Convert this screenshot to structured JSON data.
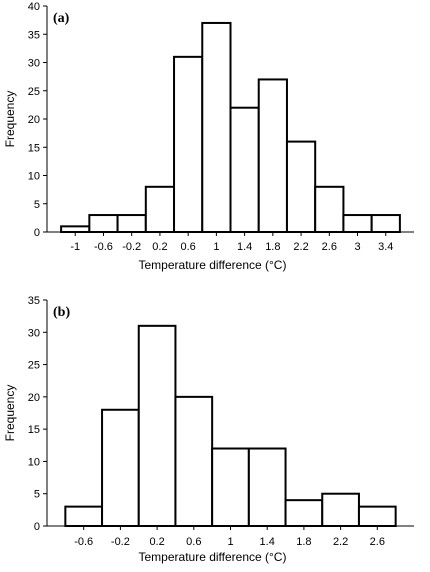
{
  "chart_data": [
    {
      "type": "bar",
      "panel_label": "(a)",
      "bin_edges": [
        -1.2,
        -0.8,
        -0.4,
        0.0,
        0.4,
        0.8,
        1.2,
        1.6,
        2.0,
        2.4,
        2.8,
        3.2,
        3.6
      ],
      "values": [
        1,
        3,
        3,
        8,
        31,
        37,
        22,
        27,
        16,
        8,
        3,
        3
      ],
      "x_tick_labels": [
        "-1",
        "-0.6",
        "-0.2",
        "0.2",
        "0.6",
        "1",
        "1.4",
        "1.8",
        "2.2",
        "2.6",
        "3",
        "3.4"
      ],
      "y_tick_labels": [
        "0",
        "5",
        "10",
        "15",
        "20",
        "25",
        "30",
        "35",
        "40"
      ],
      "xlabel": "Temperature difference (°C)",
      "ylabel": "Frequency",
      "ylim": [
        0,
        40
      ],
      "grid": false
    },
    {
      "type": "bar",
      "panel_label": "(b)",
      "bin_edges": [
        -0.8,
        -0.4,
        0.0,
        0.4,
        0.8,
        1.2,
        1.6,
        2.0,
        2.4,
        2.8
      ],
      "values": [
        3,
        18,
        31,
        20,
        12,
        12,
        4,
        5,
        3
      ],
      "x_tick_labels": [
        "-0.6",
        "-0.2",
        "0.2",
        "0.6",
        "1",
        "1.4",
        "1.8",
        "2.2",
        "2.6"
      ],
      "y_tick_labels": [
        "0",
        "5",
        "10",
        "15",
        "20",
        "25",
        "30",
        "35"
      ],
      "xlabel": "Temperature difference (°C)",
      "ylabel": "Frequency",
      "ylim": [
        0,
        35
      ],
      "grid": false
    }
  ]
}
